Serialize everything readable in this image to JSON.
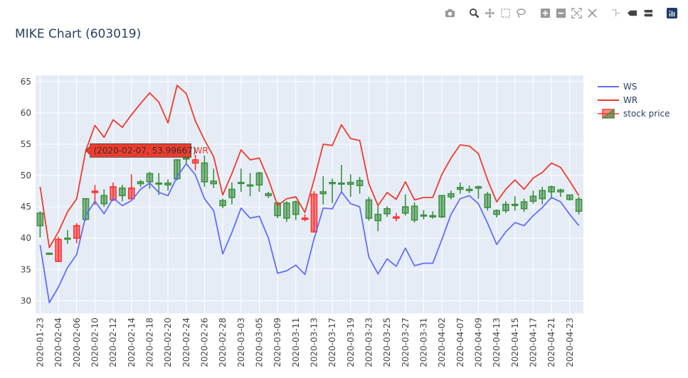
{
  "title": "MIKE Chart (603019)",
  "modebar": {
    "buttons": [
      "camera-icon",
      "zoom-icon",
      "pan-icon",
      "box-select-icon",
      "lasso-select-icon",
      "zoom-in-icon",
      "zoom-out-icon",
      "autoscale-icon",
      "reset-axes-icon",
      "spike-lines-icon",
      "hover-closest-icon",
      "hover-compare-icon",
      "plotly-logo-icon"
    ]
  },
  "colors": {
    "ws": "#636efa",
    "wr": "#ef3b2c",
    "increasing": "#3d9140",
    "decreasing": "#ff3030",
    "plot_bg": "#e5ecf6"
  },
  "chart_data": {
    "type": "line",
    "x": [
      "2020-01-23",
      "2020-02-03",
      "2020-02-04",
      "2020-02-05",
      "2020-02-06",
      "2020-02-07",
      "2020-02-10",
      "2020-02-11",
      "2020-02-12",
      "2020-02-13",
      "2020-02-14",
      "2020-02-17",
      "2020-02-18",
      "2020-02-19",
      "2020-02-20",
      "2020-02-21",
      "2020-02-24",
      "2020-02-25",
      "2020-02-26",
      "2020-02-27",
      "2020-02-28",
      "2020-03-02",
      "2020-03-03",
      "2020-03-04",
      "2020-03-05",
      "2020-03-06",
      "2020-03-09",
      "2020-03-10",
      "2020-03-11",
      "2020-03-12",
      "2020-03-13",
      "2020-03-16",
      "2020-03-17",
      "2020-03-18",
      "2020-03-19",
      "2020-03-20",
      "2020-03-23",
      "2020-03-24",
      "2020-03-25",
      "2020-03-26",
      "2020-03-27",
      "2020-03-30",
      "2020-03-31",
      "2020-04-01",
      "2020-04-02",
      "2020-04-03",
      "2020-04-07",
      "2020-04-08",
      "2020-04-09",
      "2020-04-10",
      "2020-04-13",
      "2020-04-14",
      "2020-04-15",
      "2020-04-16",
      "2020-04-17",
      "2020-04-20",
      "2020-04-21",
      "2020-04-22",
      "2020-04-23",
      "2020-04-24"
    ],
    "xticklabels": [
      "2020-01-23",
      "2020-02-04",
      "2020-02-06",
      "2020-02-10",
      "2020-02-12",
      "2020-02-14",
      "2020-02-18",
      "2020-02-20",
      "2020-02-24",
      "2020-02-26",
      "2020-02-28",
      "2020-03-03",
      "2020-03-05",
      "2020-03-09",
      "2020-03-11",
      "2020-03-13",
      "2020-03-17",
      "2020-03-19",
      "2020-03-23",
      "2020-03-25",
      "2020-03-27",
      "2020-03-31",
      "2020-04-02",
      "2020-04-07",
      "2020-04-09",
      "2020-04-13",
      "2020-04-15",
      "2020-04-17",
      "2020-04-21",
      "2020-04-23"
    ],
    "ylim": [
      28,
      66
    ],
    "yticks": [
      30,
      35,
      40,
      45,
      50,
      55,
      60,
      65
    ],
    "series": [
      {
        "name": "WS",
        "type": "line",
        "values": [
          38.9,
          29.7,
          32.2,
          35.3,
          37.4,
          43.6,
          45.9,
          43.9,
          46.4,
          45.2,
          46.0,
          47.8,
          48.8,
          47.3,
          46.8,
          49.8,
          51.9,
          50.1,
          46.3,
          44.4,
          37.5,
          40.9,
          44.8,
          43.2,
          43.5,
          40.0,
          34.4,
          34.8,
          35.7,
          34.2,
          39.9,
          44.8,
          44.7,
          47.4,
          45.5,
          45.0,
          37.0,
          34.3,
          36.7,
          35.5,
          38.4,
          35.6,
          36.0,
          36.0,
          39.8,
          43.8,
          46.3,
          46.8,
          45.5,
          42.4,
          39.0,
          41.0,
          42.5,
          42.0,
          43.6,
          44.9,
          46.5,
          45.8,
          43.8,
          42.0
        ]
      },
      {
        "name": "WR",
        "type": "line",
        "values": [
          48.2,
          38.5,
          41.0,
          44.2,
          46.3,
          53.99667,
          58.0,
          56.1,
          58.9,
          57.7,
          59.7,
          61.5,
          63.2,
          61.7,
          58.4,
          64.4,
          63.1,
          58.7,
          55.7,
          53.0,
          46.9,
          50.3,
          54.1,
          52.5,
          52.8,
          49.4,
          45.2,
          46.3,
          46.6,
          44.1,
          49.3,
          55.0,
          54.8,
          58.1,
          55.9,
          55.6,
          48.7,
          45.2,
          47.3,
          46.2,
          49.0,
          46.1,
          46.5,
          46.5,
          50.2,
          52.8,
          54.9,
          54.7,
          53.5,
          49.3,
          45.8,
          47.8,
          49.3,
          47.8,
          49.6,
          50.5,
          52.0,
          51.3,
          49.1,
          46.8
        ]
      },
      {
        "name": "stock price",
        "type": "candlestick",
        "open": [
          42.0,
          37.6,
          39.8,
          39.9,
          42.0,
          43.0,
          47.5,
          45.5,
          48.2,
          46.8,
          48.0,
          48.7,
          49.0,
          48.7,
          48.5,
          49.5,
          52.7,
          52.5,
          49.0,
          48.7,
          45.2,
          46.5,
          48.8,
          48.4,
          48.5,
          46.8,
          43.6,
          43.2,
          43.8,
          43.2,
          47.0,
          47.1,
          48.7,
          48.8,
          48.6,
          48.4,
          43.2,
          42.8,
          43.9,
          43.4,
          44.0,
          42.9,
          43.6,
          43.4,
          43.4,
          46.6,
          47.8,
          47.6,
          48.0,
          44.9,
          43.8,
          44.4,
          45.2,
          44.7,
          45.9,
          46.3,
          47.4,
          47.4,
          46.2,
          44.3
        ],
        "high": [
          44.3,
          37.7,
          40.2,
          41.3,
          42.4,
          46.3,
          48.5,
          47.8,
          48.9,
          48.5,
          50.2,
          49.3,
          50.6,
          50.4,
          49.4,
          52.6,
          53.5,
          53.3,
          53.2,
          51.1,
          46.3,
          48.9,
          51.1,
          50.4,
          50.6,
          47.4,
          45.8,
          45.9,
          46.0,
          43.8,
          47.5,
          49.9,
          49.5,
          51.7,
          50.2,
          49.8,
          46.6,
          45.1,
          45.1,
          44.0,
          47.0,
          45.7,
          44.5,
          44.3,
          46.8,
          47.6,
          48.9,
          48.4,
          48.4,
          47.4,
          44.6,
          45.9,
          46.7,
          46.3,
          47.6,
          48.2,
          48.4,
          47.9,
          46.8,
          46.6
        ],
        "low": [
          40.1,
          37.3,
          36.2,
          39.1,
          39.2,
          42.8,
          45.3,
          45.0,
          45.9,
          45.9,
          46.3,
          48.2,
          47.9,
          46.9,
          47.6,
          49.2,
          51.7,
          50.8,
          48.2,
          48.0,
          44.8,
          45.4,
          47.4,
          46.7,
          47.4,
          46.4,
          43.2,
          42.6,
          42.9,
          42.7,
          40.9,
          45.4,
          45.6,
          47.2,
          46.6,
          47.1,
          42.8,
          41.1,
          43.4,
          42.7,
          43.6,
          42.5,
          43.0,
          43.1,
          43.2,
          46.2,
          47.1,
          47.2,
          46.3,
          44.4,
          43.3,
          44.0,
          44.4,
          44.2,
          45.5,
          45.4,
          46.3,
          46.6,
          46.0,
          43.8
        ],
        "close": [
          44.0,
          37.6,
          36.3,
          40.0,
          40.0,
          46.3,
          47.3,
          46.8,
          46.1,
          48.0,
          46.3,
          49.0,
          50.3,
          48.8,
          48.8,
          52.5,
          52.8,
          52.0,
          52.0,
          49.1,
          46.0,
          47.8,
          48.9,
          48.5,
          50.4,
          47.1,
          45.6,
          45.6,
          45.8,
          43.0,
          41.0,
          47.4,
          48.9,
          48.8,
          48.9,
          49.2,
          46.1,
          43.8,
          44.7,
          43.2,
          45.0,
          45.1,
          43.7,
          43.6,
          46.8,
          47.1,
          48.1,
          47.8,
          48.2,
          47.0,
          44.4,
          45.4,
          45.4,
          45.8,
          46.7,
          47.6,
          48.2,
          47.7,
          46.9,
          46.2
        ]
      }
    ],
    "hover_label": {
      "text": "(2020-02-07, 53.99667)",
      "series": "WR"
    },
    "legend": {
      "position": "right",
      "entries": [
        "WS",
        "WR",
        "stock price"
      ]
    },
    "grid": true
  }
}
